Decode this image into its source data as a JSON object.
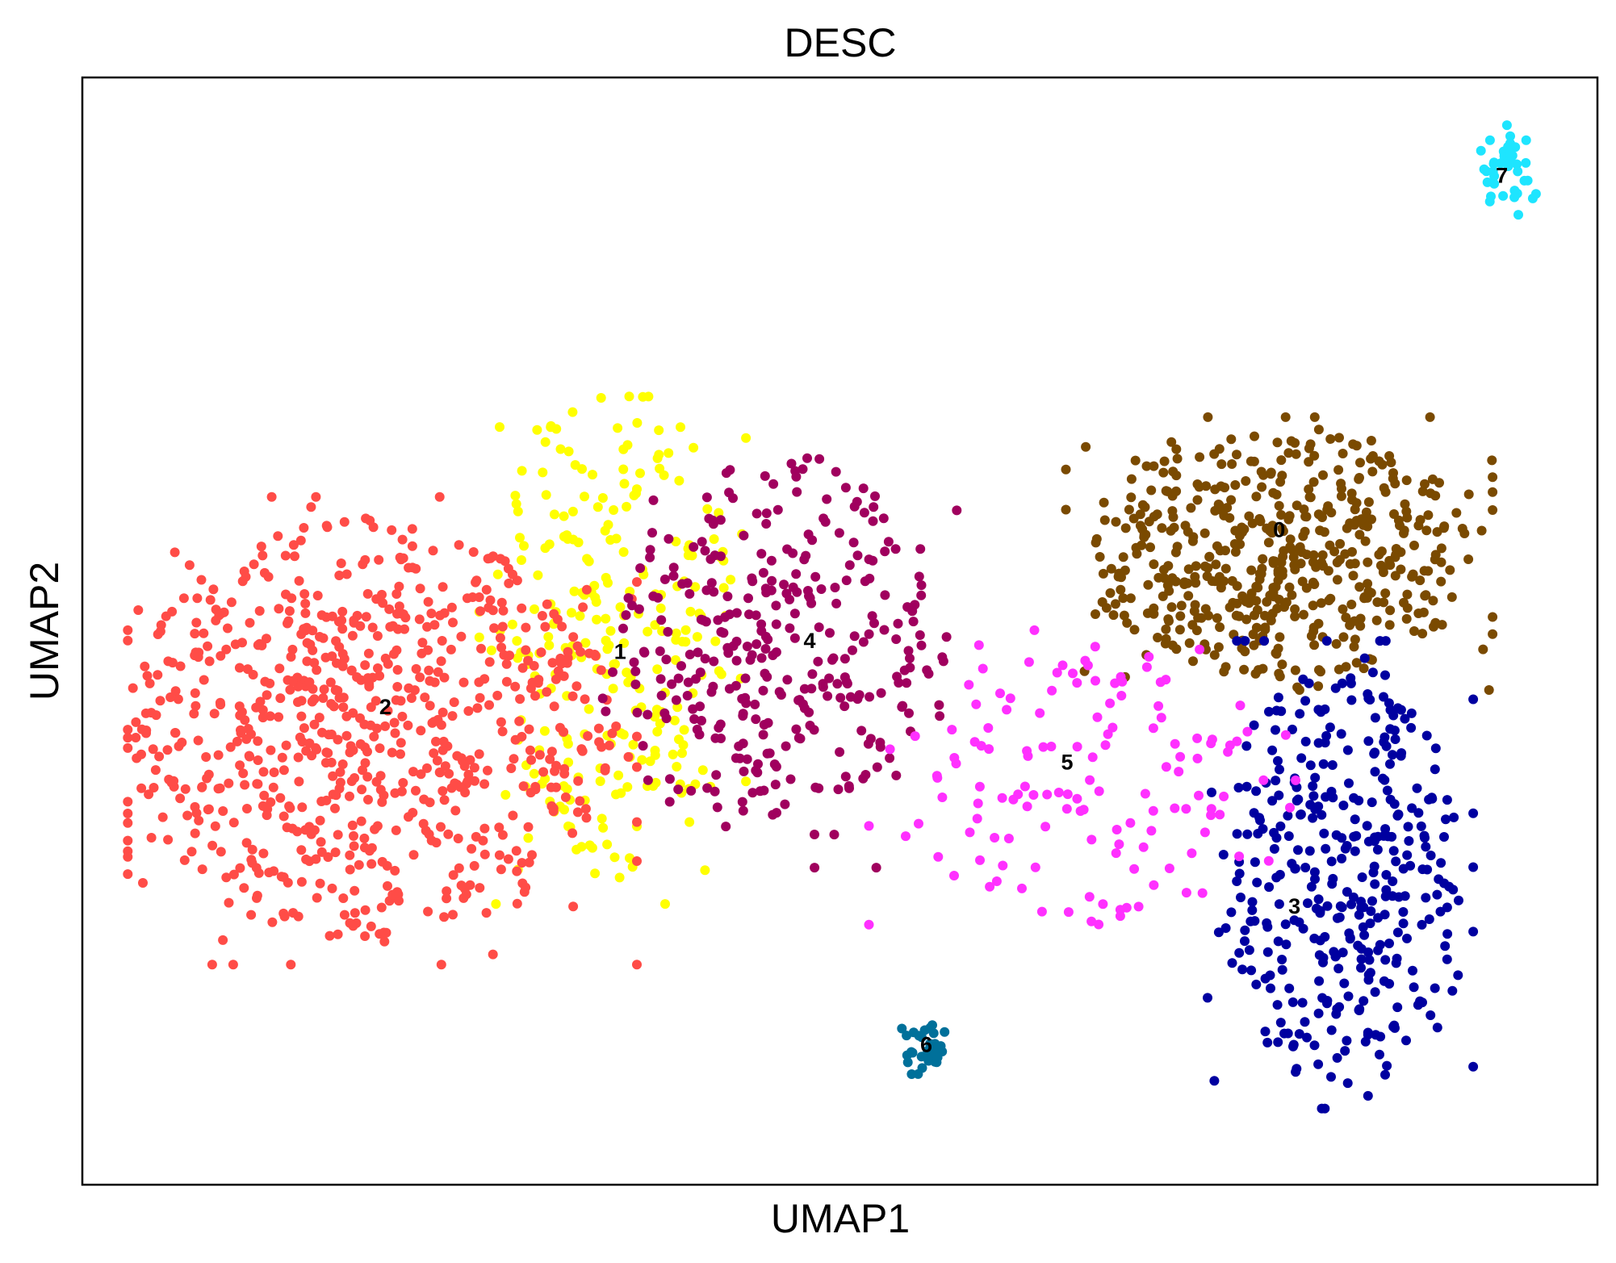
{
  "chart_data": {
    "type": "scatter",
    "title": "DESC",
    "xlabel": "UMAP1",
    "ylabel": "UMAP2",
    "xticks": [],
    "yticks": [],
    "grid": false,
    "legend": "none (cluster numbers printed on the plot)",
    "xlim": [
      0,
      100
    ],
    "ylim": [
      0,
      100
    ],
    "clusters": [
      {
        "name": "0",
        "color": "#7a4a00",
        "count": 520,
        "center": [
          79,
          57
        ],
        "spread": [
          8,
          7
        ],
        "label_pos": [
          79,
          59
        ]
      },
      {
        "name": "1",
        "color": "#ffff00",
        "count": 260,
        "center": [
          35,
          50
        ],
        "spread": [
          5,
          14
        ],
        "label_pos": [
          35.5,
          48
        ]
      },
      {
        "name": "2",
        "color": "#ff4c47",
        "count": 760,
        "center": [
          19,
          41
        ],
        "spread": [
          10,
          12
        ],
        "label_pos": [
          20,
          43
        ]
      },
      {
        "name": "3",
        "color": "#0000a0",
        "count": 380,
        "center": [
          83,
          28
        ],
        "spread": [
          5,
          12
        ],
        "label_pos": [
          80,
          25
        ]
      },
      {
        "name": "4",
        "color": "#a0005e",
        "count": 330,
        "center": [
          46,
          48
        ],
        "spread": [
          7,
          11
        ],
        "label_pos": [
          48,
          49
        ]
      },
      {
        "name": "5",
        "color": "#ff30ff",
        "count": 140,
        "center": [
          66,
          36
        ],
        "spread": [
          8,
          8
        ],
        "label_pos": [
          65,
          38
        ]
      },
      {
        "name": "6",
        "color": "#00709a",
        "count": 32,
        "center": [
          55.5,
          12
        ],
        "spread": [
          0.8,
          1.8
        ],
        "label_pos": [
          55.7,
          12.5
        ]
      },
      {
        "name": "7",
        "color": "#1ee5ff",
        "count": 40,
        "center": [
          94,
          92
        ],
        "spread": [
          1.2,
          2.5
        ],
        "label_pos": [
          93.7,
          91
        ]
      }
    ]
  }
}
